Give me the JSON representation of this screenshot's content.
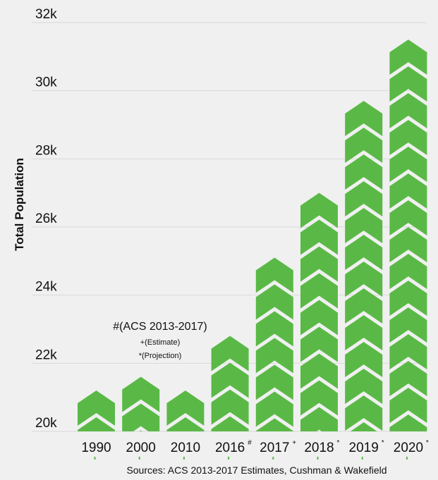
{
  "chart_data": {
    "type": "bar",
    "title": "",
    "xlabel": "",
    "ylabel": "Total Population",
    "categories": [
      "1990",
      "2000",
      "2010",
      "2016",
      "2017",
      "2018",
      "2019",
      "2020"
    ],
    "category_marks": [
      "",
      "",
      "",
      "#",
      "+",
      "*",
      "*",
      "*"
    ],
    "values": [
      21200,
      21600,
      21200,
      22800,
      25100,
      27000,
      29700,
      31500
    ],
    "ylim": [
      20000,
      32000
    ],
    "y_ticks": [
      20000,
      22000,
      24000,
      26000,
      28000,
      30000,
      32000
    ],
    "y_tick_labels": [
      "20k",
      "22k",
      "24k",
      "26k",
      "28k",
      "30k",
      "32k"
    ],
    "grid": true,
    "bar_color": "#5ab946",
    "background": "#f0f0f0",
    "bar_style": "stacked-chevrons"
  },
  "annotations": {
    "legend_title": "#(ACS 2013-2017)",
    "legend_estimate": "+(Estimate)",
    "legend_projection": "*(Projection)",
    "source": "Sources: ACS 2013-2017 Estimates, Cushman & Wakefield"
  }
}
